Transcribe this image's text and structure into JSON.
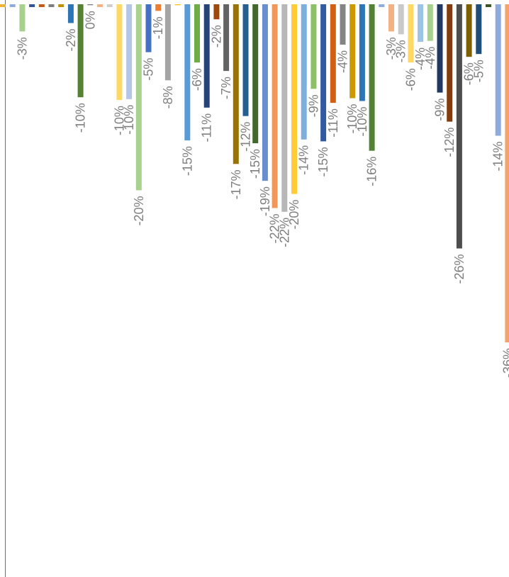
{
  "chart_data": {
    "type": "bar",
    "title": "",
    "xlabel": "",
    "ylabel": "",
    "ylim": [
      -36,
      0
    ],
    "grid": false,
    "legend": "none",
    "bars": [
      {
        "value": -0.3,
        "color": "#f2b134",
        "label": ""
      },
      {
        "value": -0.3,
        "color": "#8faadc",
        "label": ""
      },
      {
        "value": -2.9,
        "color": "#a9d18e",
        "label": "-3%"
      },
      {
        "value": -0.3,
        "color": "#2f5597",
        "label": ""
      },
      {
        "value": -0.3,
        "color": "#c55a11",
        "label": ""
      },
      {
        "value": -0.3,
        "color": "#7f7f7f",
        "label": ""
      },
      {
        "value": -0.3,
        "color": "#bf9000",
        "label": ""
      },
      {
        "value": -2.0,
        "color": "#2e75b6",
        "label": "-2%"
      },
      {
        "value": -9.9,
        "color": "#548235",
        "label": "-10%"
      },
      {
        "value": -0.1,
        "color": "#7f7f7f",
        "label": "0%"
      },
      {
        "value": -0.3,
        "color": "#f4b183",
        "label": ""
      },
      {
        "value": -0.3,
        "color": "#d0cece",
        "label": ""
      },
      {
        "value": -10.2,
        "color": "#ffd966",
        "label": "-10%"
      },
      {
        "value": -10.1,
        "color": "#b4c7e7",
        "label": "-10%"
      },
      {
        "value": -19.8,
        "color": "#a9d18e",
        "label": "-20%"
      },
      {
        "value": -5.1,
        "color": "#4472c4",
        "label": "-5%"
      },
      {
        "value": -0.7,
        "color": "#ed7d31",
        "label": "-1%"
      },
      {
        "value": -8.1,
        "color": "#a5a5a5",
        "label": "-8%"
      },
      {
        "value": -0.1,
        "color": "#ffc000",
        "label": ""
      },
      {
        "value": -14.5,
        "color": "#5b9bd5",
        "label": "-15%"
      },
      {
        "value": -6.2,
        "color": "#70ad47",
        "label": "-6%"
      },
      {
        "value": -11.0,
        "color": "#264478",
        "label": "-11%"
      },
      {
        "value": -1.6,
        "color": "#9e480e",
        "label": "-2%"
      },
      {
        "value": -7.1,
        "color": "#636363",
        "label": "-7%"
      },
      {
        "value": -17.0,
        "color": "#997300",
        "label": "-17%"
      },
      {
        "value": -11.9,
        "color": "#255e91",
        "label": "-12%"
      },
      {
        "value": -14.8,
        "color": "#43682b",
        "label": "-15%"
      },
      {
        "value": -18.8,
        "color": "#698ed0",
        "label": "-19%"
      },
      {
        "value": -21.7,
        "color": "#f1975a",
        "label": "-22%"
      },
      {
        "value": -22.1,
        "color": "#b7b7b7",
        "label": "-22%"
      },
      {
        "value": -20.2,
        "color": "#ffcd33",
        "label": "-20%"
      },
      {
        "value": -14.4,
        "color": "#7cafdd",
        "label": "-14%"
      },
      {
        "value": -9.0,
        "color": "#8cc168",
        "label": "-9%"
      },
      {
        "value": -14.6,
        "color": "#335aa1",
        "label": "-15%"
      },
      {
        "value": -10.5,
        "color": "#d26012",
        "label": "-11%"
      },
      {
        "value": -4.3,
        "color": "#848484",
        "label": "-4%"
      },
      {
        "value": -10.0,
        "color": "#cc9a00",
        "label": "-10%"
      },
      {
        "value": -10.3,
        "color": "#2e75b6",
        "label": "-10%"
      },
      {
        "value": -15.6,
        "color": "#548235",
        "label": "-16%"
      },
      {
        "value": -0.3,
        "color": "#8faadc",
        "label": ""
      },
      {
        "value": -2.9,
        "color": "#f4b183",
        "label": "-3%"
      },
      {
        "value": -3.2,
        "color": "#c9c9c9",
        "label": "-3%"
      },
      {
        "value": -6.2,
        "color": "#ffd966",
        "label": "-6%"
      },
      {
        "value": -4.0,
        "color": "#9dc3e6",
        "label": "-4%"
      },
      {
        "value": -3.9,
        "color": "#a9d18e",
        "label": "-4%"
      },
      {
        "value": -9.4,
        "color": "#203864",
        "label": "-9%"
      },
      {
        "value": -12.5,
        "color": "#843c0c",
        "label": "-12%"
      },
      {
        "value": -26.0,
        "color": "#4d4d4d",
        "label": "-26%"
      },
      {
        "value": -5.6,
        "color": "#7f6000",
        "label": "-6%"
      },
      {
        "value": -5.3,
        "color": "#1f4e79",
        "label": "-5%"
      },
      {
        "value": -0.3,
        "color": "#375623",
        "label": ""
      },
      {
        "value": -14.0,
        "color": "#8faadc",
        "label": "-14%"
      },
      {
        "value": -36.0,
        "color": "#f4a46a",
        "label": "-36%"
      }
    ]
  }
}
